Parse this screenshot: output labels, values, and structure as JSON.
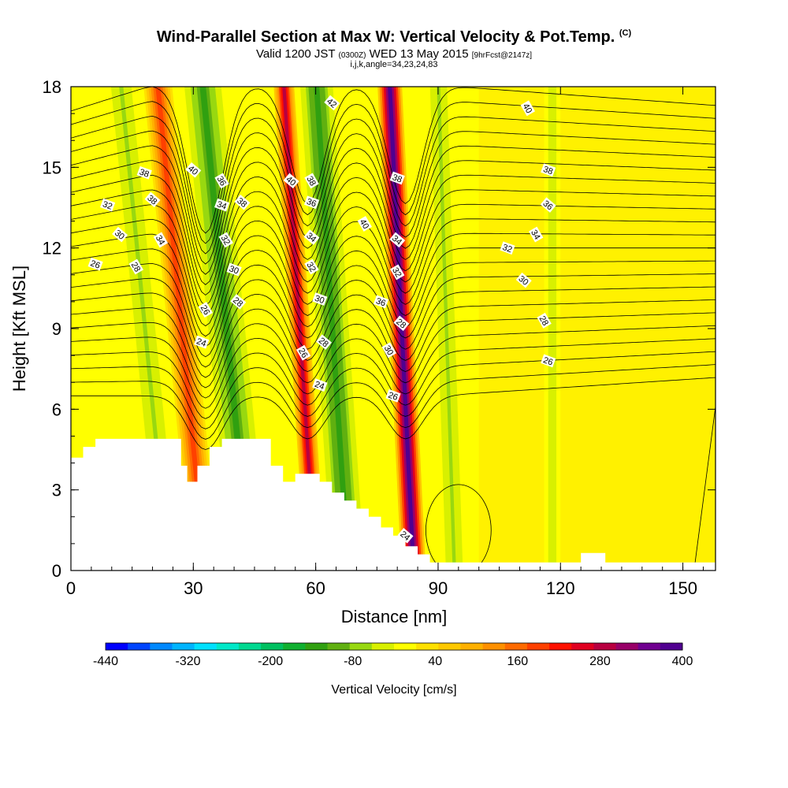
{
  "header": {
    "title": "Wind-Parallel Section at Max W: Vertical Velocity & Pot.Temp.",
    "copyright": "(C)",
    "subtitle_a": "Valid 1200 JST",
    "subtitle_utc": "(0300Z)",
    "subtitle_b": "WED 13 May 2015",
    "subtitle_fcst": "[9hrFcst@2147z]",
    "indices": "i,j,k,angle=34,23,24,83"
  },
  "chart_data": {
    "type": "heatmap",
    "xlabel": "Distance [nm]",
    "ylabel": "Height [Kft MSL]",
    "xlim": [
      0,
      158
    ],
    "ylim": [
      0,
      18
    ],
    "x_ticks": [
      "0",
      "30",
      "60",
      "90",
      "120",
      "150"
    ],
    "y_ticks": [
      "0",
      "3",
      "6",
      "9",
      "12",
      "15",
      "18"
    ],
    "colorbar": {
      "label": "Vertical Velocity [cm/s]",
      "ticks": [
        "-440",
        "-320",
        "-200",
        "-80",
        "40",
        "160",
        "280",
        "400"
      ],
      "colors": [
        "#0000ff",
        "#0044ff",
        "#0088ff",
        "#00b4ff",
        "#00e0ff",
        "#00e8c8",
        "#00d890",
        "#00c060",
        "#10b030",
        "#30a010",
        "#60b010",
        "#98d810",
        "#d8f000",
        "#ffff00",
        "#ffe000",
        "#ffc800",
        "#ffb000",
        "#ff9000",
        "#ff6a00",
        "#ff4000",
        "#ff1000",
        "#e00020",
        "#b80040",
        "#980068",
        "#700090",
        "#500090"
      ]
    },
    "velocity_bands": [
      {
        "x": 24,
        "width": 6,
        "value": -60,
        "tilt": 12
      },
      {
        "x": 33,
        "width": 7,
        "value": 200,
        "tilt": 12
      },
      {
        "x": 44,
        "width": 9,
        "value": -120,
        "tilt": 12
      },
      {
        "x": 60,
        "width": 5,
        "value": 280,
        "tilt": 8
      },
      {
        "x": 68,
        "width": 8,
        "value": -140,
        "tilt": 8
      },
      {
        "x": 84,
        "width": 6,
        "value": 380,
        "tilt": 6
      },
      {
        "x": 94,
        "width": 5,
        "value": -60,
        "tilt": 4
      },
      {
        "x": 118,
        "width": 4,
        "value": -30,
        "tilt": 0
      }
    ],
    "terrain": [
      [
        0,
        4.2
      ],
      [
        3,
        4.2
      ],
      [
        3,
        4.6
      ],
      [
        6,
        4.6
      ],
      [
        6,
        4.9
      ],
      [
        27,
        4.9
      ],
      [
        27,
        3.9
      ],
      [
        28.5,
        3.9
      ],
      [
        28.5,
        3.3
      ],
      [
        31,
        3.3
      ],
      [
        31,
        3.9
      ],
      [
        34,
        3.9
      ],
      [
        34,
        4.6
      ],
      [
        37,
        4.6
      ],
      [
        37,
        4.9
      ],
      [
        49,
        4.9
      ],
      [
        49,
        3.9
      ],
      [
        52,
        3.9
      ],
      [
        52,
        3.3
      ],
      [
        55,
        3.3
      ],
      [
        55,
        3.6
      ],
      [
        61,
        3.6
      ],
      [
        61,
        3.3
      ],
      [
        64,
        3.3
      ],
      [
        64,
        2.9
      ],
      [
        67,
        2.9
      ],
      [
        67,
        2.6
      ],
      [
        70,
        2.6
      ],
      [
        70,
        2.3
      ],
      [
        73,
        2.3
      ],
      [
        73,
        2.0
      ],
      [
        76,
        2.0
      ],
      [
        76,
        1.6
      ],
      [
        79,
        1.6
      ],
      [
        79,
        1.3
      ],
      [
        82,
        1.3
      ],
      [
        82,
        0.9
      ],
      [
        85,
        0.9
      ],
      [
        85,
        0.6
      ],
      [
        88,
        0.6
      ],
      [
        88,
        0.3
      ],
      [
        125,
        0.3
      ],
      [
        125,
        0.65
      ],
      [
        131,
        0.65
      ],
      [
        131,
        0.3
      ],
      [
        158,
        0.3
      ],
      [
        158,
        0
      ],
      [
        0,
        0
      ]
    ],
    "theta_labels": [
      {
        "text": "38",
        "x": 18,
        "y": 14.8
      },
      {
        "text": "38",
        "x": 20,
        "y": 13.8
      },
      {
        "text": "34",
        "x": 22,
        "y": 12.3
      },
      {
        "text": "32",
        "x": 9,
        "y": 13.6
      },
      {
        "text": "30",
        "x": 12,
        "y": 12.5
      },
      {
        "text": "28",
        "x": 16,
        "y": 11.3
      },
      {
        "text": "26",
        "x": 6,
        "y": 11.4
      },
      {
        "text": "40",
        "x": 30,
        "y": 14.9
      },
      {
        "text": "36",
        "x": 37,
        "y": 14.5
      },
      {
        "text": "34",
        "x": 37,
        "y": 13.6
      },
      {
        "text": "38",
        "x": 42,
        "y": 13.7
      },
      {
        "text": "32",
        "x": 38,
        "y": 12.3
      },
      {
        "text": "30",
        "x": 40,
        "y": 11.2
      },
      {
        "text": "28",
        "x": 41,
        "y": 10.0
      },
      {
        "text": "26",
        "x": 33,
        "y": 9.7
      },
      {
        "text": "24",
        "x": 32,
        "y": 8.5
      },
      {
        "text": "40",
        "x": 54,
        "y": 14.5
      },
      {
        "text": "38",
        "x": 59,
        "y": 14.5
      },
      {
        "text": "36",
        "x": 59,
        "y": 13.7
      },
      {
        "text": "34",
        "x": 59,
        "y": 12.4
      },
      {
        "text": "32",
        "x": 59,
        "y": 11.3
      },
      {
        "text": "30",
        "x": 61,
        "y": 10.1
      },
      {
        "text": "28",
        "x": 62,
        "y": 8.5
      },
      {
        "text": "26",
        "x": 57,
        "y": 8.1
      },
      {
        "text": "24",
        "x": 61,
        "y": 6.9
      },
      {
        "text": "42",
        "x": 64,
        "y": 17.4
      },
      {
        "text": "40",
        "x": 72,
        "y": 12.9
      },
      {
        "text": "38",
        "x": 80,
        "y": 14.6
      },
      {
        "text": "34",
        "x": 80,
        "y": 12.3
      },
      {
        "text": "32",
        "x": 80,
        "y": 11.1
      },
      {
        "text": "36",
        "x": 76,
        "y": 10.0
      },
      {
        "text": "28",
        "x": 81,
        "y": 9.2
      },
      {
        "text": "30",
        "x": 78,
        "y": 8.2
      },
      {
        "text": "26",
        "x": 79,
        "y": 6.5
      },
      {
        "text": "24",
        "x": 82,
        "y": 1.3
      },
      {
        "text": "40",
        "x": 112,
        "y": 17.2
      },
      {
        "text": "38",
        "x": 117,
        "y": 14.9
      },
      {
        "text": "36",
        "x": 117,
        "y": 13.6
      },
      {
        "text": "34",
        "x": 114,
        "y": 12.5
      },
      {
        "text": "32",
        "x": 107,
        "y": 12.0
      },
      {
        "text": "30",
        "x": 111,
        "y": 10.8
      },
      {
        "text": "28",
        "x": 116,
        "y": 9.3
      },
      {
        "text": "26",
        "x": 117,
        "y": 7.8
      }
    ]
  }
}
